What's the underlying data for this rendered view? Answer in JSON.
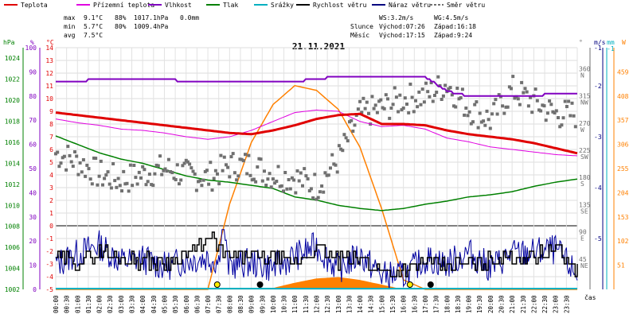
{
  "chart_data": {
    "type": "line",
    "title": "21.11.2021",
    "legend": [
      {
        "label": "Teplota",
        "color": "#e00000"
      },
      {
        "label": "Přízemní teplota",
        "color": "#e000e0"
      },
      {
        "label": "Vlhkost",
        "color": "#8000c0"
      },
      {
        "label": "Tlak",
        "color": "#008000"
      },
      {
        "label": "Srážky",
        "color": "#00b0c0"
      },
      {
        "label": "Rychlost větru",
        "color": "#000000"
      },
      {
        "label": "Náraz větru",
        "color": "#000080"
      },
      {
        "label": "Směr větru",
        "color": "#707070"
      }
    ],
    "stats": {
      "max_label": "max",
      "min_label": "min",
      "avg_label": "avg",
      "max_temp": "9.1°C",
      "max_hum": "88%",
      "max_press": "1017.1hPa",
      "max_rain": "0.0mm",
      "min_temp": "5.7°C",
      "min_hum": "80%",
      "min_press": "1009.4hPa",
      "avg_temp": "7.5°C",
      "ws": "WS:3.2m/s",
      "wg": "WG:4.5m/s",
      "slunce": "Slunce",
      "sun_rise": "Východ:07:26",
      "sun_set": "Západ:16:18",
      "mesic": "Měsíc",
      "moon_rise": "Východ:17:15",
      "moon_set": "Západ:9:24"
    },
    "units": {
      "hpa": "hPa",
      "pct": "%",
      "degc": "°C",
      "deg": "°",
      "ms": "m/s",
      "mm": "mm",
      "wm2": "W",
      "cas": "čas"
    },
    "axes": {
      "hpa": [
        "1024",
        "1022",
        "1020",
        "1018",
        "1016",
        "1014",
        "1012",
        "1010",
        "1008",
        "1006",
        "1004",
        "1002"
      ],
      "pct": [
        "100",
        "90",
        "80",
        "70",
        "60",
        "50",
        "40",
        "30",
        "20",
        "10",
        "0"
      ],
      "degc": [
        "14",
        "13",
        "12",
        "11",
        "10",
        "9",
        "8",
        "7",
        "6",
        "5",
        "4",
        "3",
        "2",
        "1",
        "0",
        "-1",
        "-2",
        "-3",
        "-4",
        "-5"
      ],
      "dir": [
        "360 N",
        "315 NW",
        "270 W",
        "225 SW",
        "180 S",
        "135 SE",
        "90 E",
        "45 NE"
      ],
      "ms": [
        "-5",
        "-4",
        "-3",
        "-2",
        "-1"
      ],
      "mm": [
        "-1"
      ],
      "wm2": [
        "459",
        "408",
        "357",
        "306",
        "255",
        "204",
        "153",
        "102",
        "51"
      ],
      "time": [
        "00:00",
        "00:30",
        "01:00",
        "01:30",
        "02:00",
        "02:30",
        "03:00",
        "03:30",
        "04:00",
        "04:30",
        "05:00",
        "05:30",
        "06:00",
        "06:30",
        "07:00",
        "07:30",
        "08:00",
        "08:30",
        "09:00",
        "09:30",
        "10:00",
        "10:30",
        "11:00",
        "11:30",
        "12:00",
        "12:30",
        "13:00",
        "13:30",
        "14:00",
        "14:30",
        "15:00",
        "15:30",
        "16:00",
        "16:30",
        "17:00",
        "17:30",
        "18:00",
        "18:30",
        "19:00",
        "19:30",
        "20:00",
        "20:30",
        "21:00",
        "21:30",
        "22:00",
        "22:30",
        "23:00",
        "23:30"
      ]
    },
    "x_hours": [
      0,
      1,
      2,
      3,
      4,
      5,
      6,
      7,
      8,
      9,
      10,
      11,
      12,
      13,
      14,
      15,
      16,
      17,
      18,
      19,
      20,
      21,
      22,
      23,
      24
    ],
    "temperature_c": [
      8.9,
      8.7,
      8.5,
      8.3,
      8.1,
      7.9,
      7.7,
      7.5,
      7.3,
      7.2,
      7.5,
      7.9,
      8.4,
      8.7,
      8.8,
      8.0,
      8.0,
      7.9,
      7.5,
      7.2,
      7.0,
      6.8,
      6.5,
      6.1,
      5.7
    ],
    "ground_temperature_c": [
      8.4,
      8.1,
      7.9,
      7.6,
      7.5,
      7.3,
      7.0,
      6.8,
      7.0,
      7.5,
      8.2,
      8.9,
      9.1,
      9.0,
      8.2,
      7.8,
      7.9,
      7.6,
      6.9,
      6.6,
      6.2,
      6.0,
      5.8,
      5.6,
      5.5
    ],
    "humidity_pct": [
      86,
      86,
      87,
      87,
      87,
      87,
      86,
      86,
      86,
      86,
      86,
      86,
      87,
      88,
      88,
      88,
      88,
      88,
      82,
      80,
      80,
      80,
      80,
      81,
      81
    ],
    "pressure_hpa": [
      1016.6,
      1015.8,
      1015.0,
      1014.4,
      1014.0,
      1013.4,
      1012.8,
      1012.4,
      1012.2,
      1011.9,
      1011.6,
      1010.8,
      1010.5,
      1010.0,
      1009.7,
      1009.5,
      1009.7,
      1010.1,
      1010.4,
      1010.8,
      1011.0,
      1011.3,
      1011.8,
      1012.2,
      1012.5
    ],
    "solar_w_m2": [
      0,
      0,
      0,
      0,
      0,
      0,
      0,
      0,
      0,
      0,
      3,
      14,
      23,
      26,
      20,
      10,
      0,
      0,
      0,
      0,
      0,
      0,
      0,
      0,
      0
    ],
    "solar_curve_w_m2": [
      0,
      0,
      0,
      0,
      0,
      0,
      0,
      0,
      180,
      310,
      390,
      430,
      420,
      380,
      300,
      170,
      20,
      0,
      0,
      0,
      0,
      0,
      0,
      0,
      0
    ],
    "wind_speed_ms": [
      -2.5,
      -2.8,
      -2.0,
      -2.6,
      -2.7,
      -2.9,
      -2.2,
      -1.0,
      -2.5,
      -2.3,
      -2.6,
      -3.0,
      -1.8,
      -2.8,
      -2.5,
      -3.6,
      -3.6,
      -2.8,
      -3.2,
      -2.9,
      -2.7,
      -2.5,
      -2.3,
      -1.8,
      -3.6
    ],
    "wind_gust_ms": [
      -3.0,
      -2.2,
      -1.5,
      -2.8,
      -2.6,
      -3.2,
      -2.7,
      -2.5,
      -3.1,
      -2.9,
      -3.3,
      -2.4,
      -1.6,
      -3.4,
      -2.3,
      -3.9,
      -3.9,
      -2.6,
      -3.0,
      -2.1,
      -3.3,
      -2.2,
      -2.1,
      -1.9,
      -3.9
    ],
    "wind_direction_deg": [
      225,
      212,
      190,
      180,
      190,
      200,
      190,
      185,
      205,
      205,
      190,
      185,
      170,
      215,
      290,
      300,
      315,
      320,
      340,
      300,
      280,
      330,
      310,
      290,
      290
    ],
    "sun_markers_h": [
      7.43,
      16.3
    ],
    "moon_markers_h": [
      9.4,
      17.25
    ],
    "ranges": {
      "temp_c": [
        -5,
        14
      ],
      "pct": [
        0,
        100
      ],
      "hpa": [
        1002,
        1025
      ],
      "dir_deg": [
        0,
        400
      ],
      "solar": [
        0,
        510
      ]
    }
  }
}
